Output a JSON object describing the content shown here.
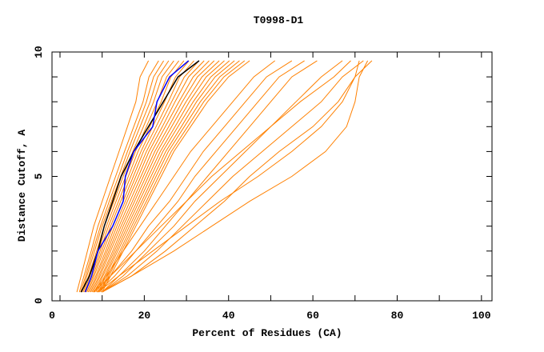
{
  "chart_data": {
    "type": "line",
    "title": "T0998-D1",
    "xlabel": "Percent of Residues (CA)",
    "ylabel": "Distance Cutoff, A",
    "xlim": [
      -1.9,
      102.5
    ],
    "ylim": [
      0,
      10
    ],
    "x_ticks": [
      0,
      20,
      40,
      60,
      80,
      100
    ],
    "y_ticks": [
      0,
      5,
      10
    ],
    "grid": false,
    "y_levels": [
      0.35,
      1,
      2,
      3,
      4,
      5,
      6,
      7,
      8,
      9,
      9.65
    ],
    "colors": {
      "models": "#ff8000",
      "highlight_black": "#000000",
      "highlight_blue": "#0000ff"
    },
    "series": [
      {
        "color": "#ff8000",
        "x": [
          4,
          5,
          6.5,
          8,
          10,
          12,
          14,
          16,
          18,
          19,
          21
        ]
      },
      {
        "color": "#ff8000",
        "x": [
          4.6,
          5.7,
          7.4,
          9,
          11.1,
          13.2,
          15.3,
          17.5,
          19.7,
          21.1,
          23.4
        ]
      },
      {
        "color": "#ff8000",
        "x": [
          4.9,
          6.1,
          7.8,
          9.6,
          11.7,
          13.9,
          16,
          18.3,
          20.5,
          22.2,
          24.6
        ]
      },
      {
        "color": "#ff8000",
        "x": [
          5.2,
          6.4,
          8.2,
          10,
          12.2,
          14.4,
          16.6,
          19,
          21.4,
          23.2,
          25.8
        ]
      },
      {
        "color": "#ff8000",
        "x": [
          5.5,
          6.8,
          8.7,
          10.5,
          12.8,
          15,
          17.3,
          19.8,
          22.2,
          24.2,
          27
        ]
      },
      {
        "color": "#ff8000",
        "x": [
          5.8,
          7.1,
          9.1,
          11,
          13.3,
          15.6,
          17.9,
          20.5,
          23.1,
          25.3,
          28.2
        ]
      },
      {
        "color": "#ff8000",
        "x": [
          6.1,
          7.5,
          9.5,
          11.5,
          13.9,
          16.2,
          18.5,
          21.3,
          24,
          26.3,
          29.4
        ]
      },
      {
        "color": "#ff8000",
        "x": [
          6.4,
          7.8,
          9.9,
          12,
          14.4,
          16.8,
          19.2,
          22,
          24.8,
          27.4,
          30.6
        ]
      },
      {
        "color": "#ff8000",
        "x": [
          6.7,
          8.1,
          10.3,
          12.5,
          15,
          17.4,
          19.8,
          22.8,
          25.7,
          28.4,
          31.8
        ]
      },
      {
        "color": "#ff8000",
        "x": [
          7,
          8.5,
          10.8,
          13,
          15.5,
          18,
          20.5,
          23.5,
          26.5,
          29.5,
          33
        ]
      },
      {
        "color": "#ff8000",
        "x": [
          7.3,
          8.8,
          11.2,
          13.5,
          16,
          18.6,
          21.1,
          24.3,
          27.3,
          30.5,
          34.2
        ]
      },
      {
        "color": "#ff8000",
        "x": [
          7.6,
          9.2,
          11.6,
          14,
          16.6,
          19.2,
          21.8,
          25,
          28.2,
          31.6,
          35.4
        ]
      },
      {
        "color": "#ff8000",
        "x": [
          7.9,
          9.5,
          12,
          14.5,
          17.2,
          19.8,
          22.5,
          25.8,
          29,
          32.6,
          36.6
        ]
      },
      {
        "color": "#ff8000",
        "x": [
          8.2,
          9.9,
          12.5,
          15,
          17.7,
          20.4,
          23.1,
          26.5,
          29.9,
          33.7,
          37.8
        ]
      },
      {
        "color": "#ff8000",
        "x": [
          8.5,
          10.2,
          12.9,
          15.5,
          18.3,
          21,
          23.8,
          27.3,
          30.7,
          34.7,
          39
        ]
      },
      {
        "color": "#ff8000",
        "x": [
          8.8,
          10.6,
          13.3,
          16,
          18.8,
          21.6,
          24.4,
          28,
          31.6,
          35.8,
          40.2
        ]
      },
      {
        "color": "#ff8000",
        "x": [
          9.1,
          10.9,
          13.7,
          16.5,
          19.4,
          22.2,
          25.1,
          28.8,
          32.4,
          36.8,
          41.4
        ]
      },
      {
        "color": "#ff8000",
        "x": [
          9.4,
          11.3,
          14.2,
          17,
          19.9,
          22.8,
          25.7,
          29.5,
          33.3,
          37.9,
          42.6
        ]
      },
      {
        "color": "#ff8000",
        "x": [
          9.7,
          11.6,
          14.6,
          17.5,
          20.5,
          23.4,
          26.4,
          30.3,
          34.1,
          38.9,
          43.8
        ]
      },
      {
        "color": "#ff8000",
        "x": [
          10,
          12,
          15,
          18,
          21,
          24,
          27,
          31,
          35,
          40,
          45
        ]
      },
      {
        "color": "#ff8000",
        "x": [
          8,
          11,
          15,
          19,
          23,
          27,
          31,
          36,
          41,
          46,
          51
        ]
      },
      {
        "color": "#ff8000",
        "x": [
          9,
          12,
          17,
          21,
          26,
          30,
          34,
          39,
          44,
          49,
          55
        ]
      },
      {
        "color": "#ff8000",
        "x": [
          9,
          13,
          18,
          23,
          28,
          32,
          37,
          42,
          47,
          52,
          58
        ]
      },
      {
        "color": "#ff8000",
        "x": [
          10,
          14,
          20,
          25,
          30,
          35,
          40,
          45,
          50,
          55,
          61
        ]
      },
      {
        "color": "#ff8000",
        "x": [
          10,
          15,
          21,
          27,
          32,
          38,
          44,
          50,
          56,
          62,
          67
        ]
      },
      {
        "color": "#ff8000",
        "x": [
          10,
          16,
          23,
          29,
          35,
          41,
          48,
          55,
          62,
          67,
          72
        ]
      },
      {
        "color": "#ff8000",
        "x": [
          10,
          17,
          25,
          32,
          39,
          45,
          52,
          60,
          66,
          70,
          74
        ]
      },
      {
        "color": "#ff8000",
        "x": [
          10,
          17,
          27,
          36,
          45,
          55,
          63,
          68,
          70,
          71,
          73
        ]
      },
      {
        "color": "#ff8000",
        "x": [
          9,
          14,
          22,
          30,
          38,
          47,
          55,
          62,
          67,
          70,
          71
        ]
      },
      {
        "color": "#ff8000",
        "x": [
          8,
          12,
          18,
          24,
          30,
          36,
          43,
          50,
          57,
          65,
          69
        ]
      },
      {
        "color": "#000000",
        "x": [
          5,
          7,
          9,
          10.5,
          12.5,
          14.5,
          17.5,
          21,
          24.5,
          28,
          33
        ]
      },
      {
        "color": "#0000ff",
        "x": [
          6,
          7.5,
          9,
          12.5,
          15,
          15.5,
          17.5,
          22,
          23,
          26,
          30.5
        ]
      }
    ]
  }
}
